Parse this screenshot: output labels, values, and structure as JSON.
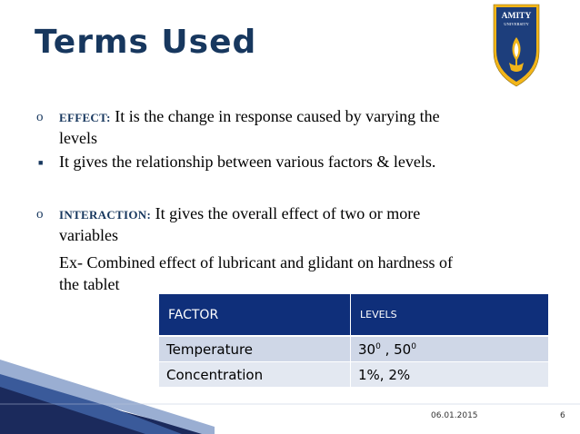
{
  "slide": {
    "title": "Terms Used",
    "logo": {
      "line1": "AMITY",
      "line2": "UNIVERSITY"
    },
    "bullets": {
      "effect_label": "EFFECT:",
      "effect_text_1": " It is the change in response caused by varying the",
      "effect_text_2": "levels",
      "relationship": "It gives the relationship between various factors & levels.",
      "interaction_label": "INTERACTION:",
      "interaction_text_1": " It gives the overall effect of two or more",
      "interaction_text_2": "variables",
      "example_1": "Ex- Combined effect of lubricant and glidant on hardness of",
      "example_2": "the tablet"
    },
    "table": {
      "header_factor": "FACTOR",
      "header_levels": "LEVELS",
      "row1_factor": "Temperature",
      "row1_level_a": "30",
      "row1_level_a_sup": "0",
      "row1_sep": " , ",
      "row1_level_b": "50",
      "row1_level_b_sup": "0",
      "row2_factor": "Concentration",
      "row2_levels": "1%, 2%"
    },
    "footer": {
      "date": "06.01.2015",
      "page": "6"
    },
    "colors": {
      "title": "#17375e",
      "table_header": "#0f2f7a",
      "row1": "#cfd7e7",
      "row2": "#e3e8f1"
    }
  }
}
